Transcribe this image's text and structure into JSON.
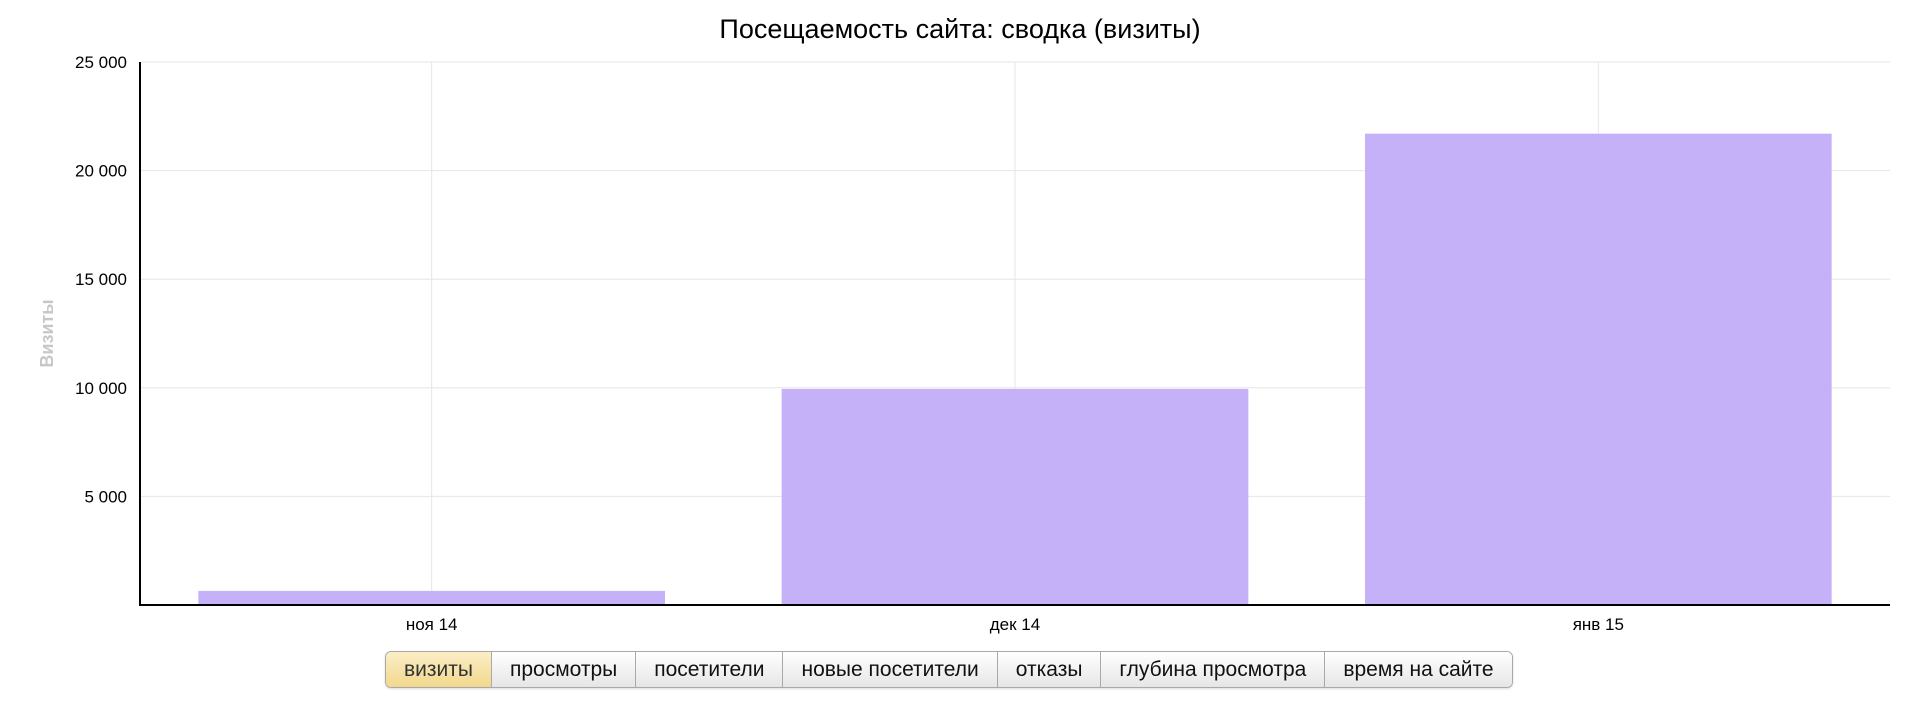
{
  "colors": {
    "bar": "#c4b1f7",
    "grid": "#e6e6e6",
    "axis": "#000000",
    "ylabel": "#c8c8c8"
  },
  "tabs": [
    {
      "label": "визиты",
      "active": true
    },
    {
      "label": "просмотры"
    },
    {
      "label": "посетители"
    },
    {
      "label": "новые посетители"
    },
    {
      "label": "отказы"
    },
    {
      "label": "глубина просмотра"
    },
    {
      "label": "время на сайте"
    }
  ],
  "chart_data": {
    "type": "bar",
    "title": "Посещаемость сайта: сводка (визиты)",
    "xlabel": "",
    "ylabel": "Визиты",
    "categories": [
      "ноя 14",
      "дек 14",
      "янв 15"
    ],
    "series": [
      {
        "values": [
          650,
          9950,
          21700
        ]
      }
    ],
    "ylim": [
      0,
      25000
    ],
    "yticks": [
      5000,
      10000,
      15000,
      20000,
      25000
    ],
    "ytick_labels": [
      "5 000",
      "10 000",
      "15 000",
      "20 000",
      "25 000"
    ],
    "grid": true
  }
}
